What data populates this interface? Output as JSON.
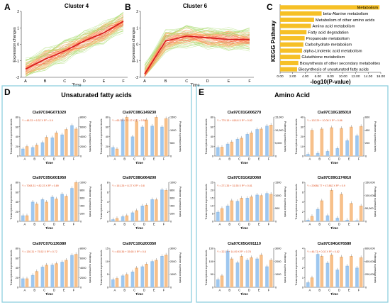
{
  "panels": {
    "A": {
      "letter": "A",
      "title": "Cluster 4",
      "ylabel": "Expression changes",
      "xlabel": "Time"
    },
    "B": {
      "letter": "B",
      "title": "Cluster 6",
      "ylabel": "Expression changes",
      "xlabel": "Time"
    },
    "C": {
      "letter": "C",
      "ylabel": "KEGG Pathway",
      "xlabel": "-log10(P-value)"
    },
    "D": {
      "letter": "D",
      "title": "Unsaturated fatty acids"
    },
    "E": {
      "letter": "E",
      "title": "Amino Acid"
    }
  },
  "colors": {
    "cluster_mean": "#d7191c",
    "cluster_line_hot": "#f46d43",
    "cluster_line_mid": "#fdae61",
    "cluster_line_cool": "#a6d96a",
    "kegg_bar": "#f6c026",
    "transcript_bar": "#9ec7ef",
    "protein_bar": "#f7c08a",
    "equation_text": "#e05020",
    "frame": "#8fd0df"
  },
  "chart_data": [
    {
      "id": "A",
      "type": "line",
      "title": "Cluster 4",
      "x": [
        "A",
        "B",
        "C",
        "D",
        "E",
        "F"
      ],
      "ylabel": "Expression changes",
      "xlabel": "Time",
      "ylim": [
        -2,
        2
      ],
      "series": [
        {
          "values": [
            -1.5,
            -0.9,
            -0.4,
            0.2,
            0.7,
            1.4
          ]
        }
      ]
    },
    {
      "id": "B",
      "type": "line",
      "title": "Cluster 6",
      "x": [
        "A",
        "B",
        "C",
        "D",
        "E",
        "F"
      ],
      "ylabel": "Expression changes",
      "xlabel": "Time",
      "ylim": [
        -2,
        2
      ],
      "series": [
        {
          "values": [
            -1.8,
            0.2,
            0.5,
            0.4,
            0.3,
            0.3
          ]
        }
      ]
    },
    {
      "id": "C",
      "type": "bar",
      "orientation": "horizontal",
      "ylabel": "KEGG Pathway",
      "xlabel": "-log10(P-value)",
      "xlim": [
        0,
        16
      ],
      "xticks": [
        "0.00",
        "2.00",
        "4.00",
        "6.00",
        "8.00",
        "10.00",
        "12.00",
        "14.00",
        "16.00"
      ],
      "categories": [
        "Metabolism",
        "beta-Alanine metabolism",
        "Metabolism of other amino acids",
        "Amino acid metabolism",
        "Fatty acid degradation",
        "Propanoate metabolism",
        "Carbohydrate metabolism",
        "alpha-Linolenic acid metabolism",
        "Glutathione metabolism",
        "Biosynthesis of other secondary metabolites",
        "Biosynthesis of unsaturated fatty acids"
      ],
      "values": [
        15.8,
        6.6,
        5.4,
        4.9,
        4.2,
        3.9,
        3.7,
        3.5,
        3.2,
        2.9,
        2.7
      ]
    },
    {
      "id": "D1",
      "type": "bar",
      "title": "Cla97C04G071020",
      "xlabel": "Time",
      "ylabel": "Transcriptome expression levels",
      "y2label": "Proteome expression levels",
      "categories": [
        "A",
        "B",
        "C",
        "D",
        "E",
        "F"
      ],
      "equation": "Y = 48.33 + 6.32 X  R² = 0.9",
      "yticks": [
        "0",
        "20",
        "40",
        "60",
        "80"
      ],
      "y2ticks": [
        "0",
        "2000",
        "4000",
        "6000",
        "8000"
      ],
      "series": [
        {
          "values": [
            15,
            18,
            28,
            38,
            44,
            63
          ]
        },
        {
          "values": [
            2000,
            2300,
            3900,
            4800,
            5500,
            5600
          ]
        }
      ]
    },
    {
      "id": "D2",
      "type": "bar",
      "title": "Cla97C08G149230",
      "xlabel": "Time",
      "ylabel": "Transcriptome expression levels",
      "y2label": "Proteome expression levels",
      "categories": [
        "A",
        "B",
        "C",
        "D",
        "E",
        "F"
      ],
      "equation": "Y = 65.33 + 22.12 X  R² = 0.54",
      "yticks": [
        "0",
        "20",
        "40",
        "60",
        "80"
      ],
      "y2ticks": [
        "0",
        "500",
        "1000",
        "1500"
      ],
      "series": [
        {
          "values": [
            18,
            75,
            40,
            60,
            62,
            60
          ]
        },
        {
          "values": [
            280,
            1500,
            1350,
            1400,
            1500,
            1450
          ]
        }
      ]
    },
    {
      "id": "D3",
      "type": "bar",
      "title": "Cla97C05G001950",
      "xlabel": "Time",
      "ylabel": "Transcriptome expression levels",
      "y2label": "Proteome expression levels",
      "categories": [
        "A",
        "B",
        "C",
        "D",
        "E",
        "F"
      ],
      "equation": "Y = 7008.31 + 82.23 X  R² = 0.89",
      "yticks": [
        "0",
        "20",
        "40",
        "60",
        "80"
      ],
      "y2ticks": [
        "0",
        "200",
        "400",
        "600",
        "800",
        "1000"
      ],
      "series": [
        {
          "values": [
            12,
            40,
            45,
            50,
            56,
            68
          ]
        },
        {
          "values": [
            150,
            450,
            500,
            580,
            650,
            1000
          ]
        }
      ]
    },
    {
      "id": "D4",
      "type": "bar",
      "title": "Cla97C08G064200",
      "xlabel": "Time",
      "ylabel": "Transcriptome expression levels",
      "y2label": "Proteome expression levels",
      "categories": [
        "A",
        "B",
        "C",
        "D",
        "E",
        "F"
      ],
      "equation": "Y = 161.26 + 8.27 X  R² = 0.8",
      "yticks": [
        "0",
        "2",
        "4",
        "6",
        "8"
      ],
      "y2ticks": [
        "0",
        "200",
        "400",
        "600",
        "800",
        "1000"
      ],
      "series": [
        {
          "values": [
            0.4,
            1.0,
            1.8,
            3.2,
            4.5,
            6.5
          ]
        },
        {
          "values": [
            80,
            150,
            280,
            420,
            560,
            800
          ]
        }
      ]
    },
    {
      "id": "D5",
      "type": "bar",
      "title": "Cla97C07G136380",
      "xlabel": "Time",
      "ylabel": "Transcriptome expression levels",
      "y2label": "Proteome expression levels",
      "categories": [
        "A",
        "B",
        "C",
        "D",
        "E",
        "F"
      ],
      "equation": "Y = 130.31 + 75.52 X  R² = 0.72",
      "yticks": [
        "0",
        "20",
        "40",
        "60",
        "80"
      ],
      "y2ticks": [
        "0",
        "2000",
        "4000",
        "6000",
        "8000"
      ],
      "series": [
        {
          "values": [
            18,
            25,
            42,
            46,
            52,
            66
          ]
        },
        {
          "values": [
            1800,
            3300,
            4600,
            4900,
            5600,
            6800
          ]
        }
      ]
    },
    {
      "id": "D6",
      "type": "bar",
      "title": "Cla97C10G200350",
      "xlabel": "Time",
      "ylabel": "Transcriptome expression levels",
      "y2label": "Proteome expression levels",
      "categories": [
        "A",
        "B",
        "C",
        "D",
        "E",
        "F"
      ],
      "equation": "Y = 435.36 + 35.65 X  R² = 0.8",
      "yticks": [
        "0",
        "5",
        "10",
        "15"
      ],
      "y2ticks": [
        "0",
        "1000",
        "2000",
        "3000"
      ],
      "series": [
        {
          "values": [
            3,
            4.5,
            6,
            8,
            10,
            12
          ]
        },
        {
          "values": [
            700,
            1000,
            1500,
            1800,
            2100,
            2500
          ]
        }
      ]
    },
    {
      "id": "E1",
      "type": "bar",
      "title": "Cla97C01G006270",
      "xlabel": "Time",
      "ylabel": "Transcriptome expression levels",
      "y2label": "Proteome expression levels",
      "categories": [
        "A",
        "B",
        "C",
        "D",
        "E",
        "F"
      ],
      "equation": "Y = 779.15 + 618.8 X  R² = 0.82",
      "yticks": [
        "0",
        "20",
        "40",
        "60",
        "80"
      ],
      "y2ticks": [
        "0",
        "5,000",
        "10,000",
        "15,000"
      ],
      "series": [
        {
          "values": [
            18,
            25,
            35,
            45,
            55,
            62
          ]
        },
        {
          "values": [
            3500,
            5500,
            7000,
            9000,
            10500,
            12000
          ]
        }
      ]
    },
    {
      "id": "E2",
      "type": "bar",
      "title": "Cla97C10G185010",
      "xlabel": "Time",
      "ylabel": "Transcriptome expression levels",
      "y2label": "Proteome expression levels",
      "categories": [
        "A",
        "B",
        "C",
        "D",
        "E",
        "F"
      ],
      "equation": "Y = 102.29 + 10.08 X  R² = 0.86",
      "yticks": [
        "0",
        "10",
        "20",
        "30",
        "40"
      ],
      "y2ticks": [
        "0",
        "200",
        "400",
        "600"
      ],
      "series": [
        {
          "values": [
            2,
            3,
            5,
            8,
            16,
            21
          ]
        },
        {
          "values": [
            400,
            420,
            440,
            430,
            450,
            460
          ]
        }
      ]
    },
    {
      "id": "E3",
      "type": "bar",
      "title": "Cla97C01G020060",
      "xlabel": "Time",
      "ylabel": "Transcriptome expression levels",
      "y2label": "Proteome expression levels",
      "categories": [
        "A",
        "B",
        "C",
        "D",
        "E",
        "F"
      ],
      "equation": "Y = 271.35 + 31.55 X  R² = 0.81",
      "yticks": [
        "0",
        "5",
        "10",
        "15",
        "20",
        "25"
      ],
      "y2ticks": [
        "0",
        "500",
        "1000",
        "1500"
      ],
      "series": [
        {
          "values": [
            6,
            10,
            13,
            15,
            17,
            18
          ]
        },
        {
          "values": [
            500,
            800,
            900,
            950,
            1000,
            1050
          ]
        }
      ]
    },
    {
      "id": "E4",
      "type": "bar",
      "title": "Cla97C09G174910",
      "xlabel": "Time",
      "ylabel": "Transcriptome expression levels",
      "y2label": "Proteome expression levels",
      "categories": [
        "A",
        "B",
        "C",
        "D",
        "E",
        "F"
      ],
      "equation": "Y = 20088.77 + 47.882 X  R² = 0.9",
      "yticks": [
        "0",
        "2",
        "4",
        "6",
        "8"
      ],
      "y2ticks": [
        "0",
        "50,000",
        "100,000",
        "150,000"
      ],
      "series": [
        {
          "values": [
            0.3,
            2.5,
            1.2,
            0.7,
            0.3,
            0.2
          ]
        },
        {
          "values": [
            20000,
            80000,
            120000,
            105000,
            70000,
            60000
          ]
        }
      ]
    },
    {
      "id": "E5",
      "type": "bar",
      "title": "Cla97C05G091110",
      "xlabel": "Time",
      "ylabel": "Transcriptome expression levels",
      "y2label": "Proteome expression levels",
      "categories": [
        "A",
        "B",
        "C",
        "D",
        "E",
        "F"
      ],
      "equation": "Y = 321.7 + 14.09 X  R² = 0.78",
      "yticks": [
        "0",
        "50",
        "100",
        "150"
      ],
      "y2ticks": [
        "0",
        "1000",
        "2000",
        "3000"
      ],
      "series": [
        {
          "values": [
            30,
            140,
            95,
            105,
            110,
            80
          ]
        },
        {
          "values": [
            900,
            2200,
            2400,
            2300,
            2500,
            2100
          ]
        }
      ]
    },
    {
      "id": "E6",
      "type": "bar",
      "title": "Cla97C04G076580",
      "xlabel": "Time",
      "ylabel": "Transcriptome expression levels",
      "y2label": "Proteome expression levels",
      "categories": [
        "A",
        "B",
        "C",
        "D",
        "E",
        "F"
      ],
      "equation": "Y = 46.73 + 0.02 X  R² = 0.82",
      "yticks": [
        "0",
        "1",
        "2",
        "3",
        "4"
      ],
      "y2ticks": [
        "0",
        "200,000",
        "400,000",
        "600,000"
      ],
      "series": [
        {
          "values": [
            0.5,
            3.4,
            2.5,
            1.8,
            2.2,
            2.0
          ]
        },
        {
          "values": [
            150000,
            480000,
            500000,
            470000,
            480000,
            460000
          ]
        }
      ]
    }
  ]
}
